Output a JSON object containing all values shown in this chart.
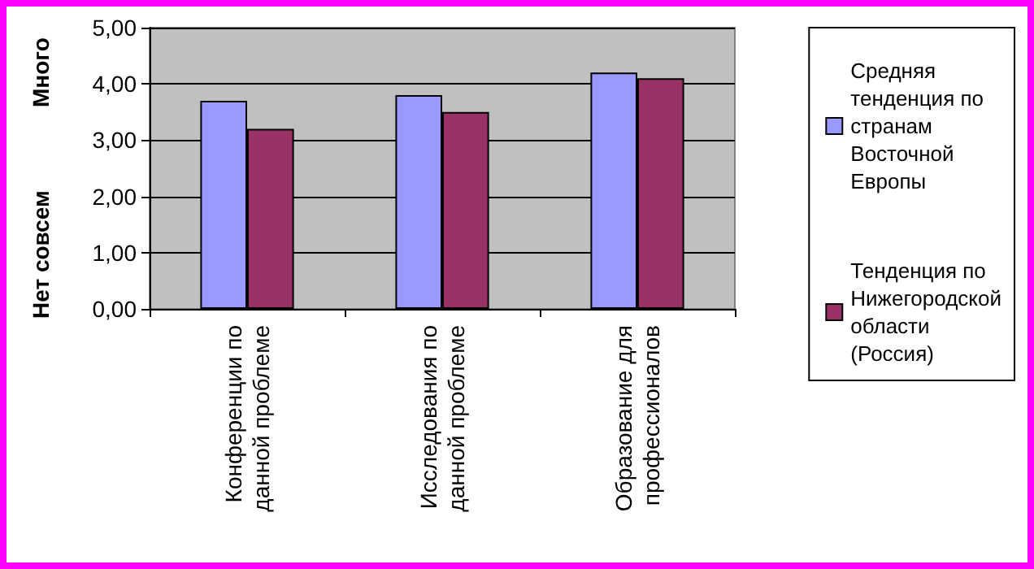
{
  "chart_data": {
    "type": "bar",
    "categories": [
      "Конференции по данной проблеме",
      "Исследования по данной проблеме",
      "Образование для профессионалов"
    ],
    "series": [
      {
        "name": "Средняя тенденция по странам Восточной Европы",
        "color": "#9999ff",
        "values": [
          3.7,
          3.8,
          4.2
        ]
      },
      {
        "name": "Тенденция по Нижегородской области (Россия)",
        "color": "#993366",
        "values": [
          3.2,
          3.5,
          4.1
        ]
      }
    ],
    "ylabel": "Нет совсем",
    "annotations": [
      "Много"
    ],
    "ylim": [
      0,
      5
    ],
    "yticks": [
      {
        "value": 0,
        "label": "0,00"
      },
      {
        "value": 1,
        "label": "1,00"
      },
      {
        "value": 2,
        "label": "2,00"
      },
      {
        "value": 3,
        "label": "3,00"
      },
      {
        "value": 4,
        "label": "4,00"
      },
      {
        "value": 5,
        "label": "5,00"
      }
    ],
    "grid": "y",
    "legend": "right"
  }
}
